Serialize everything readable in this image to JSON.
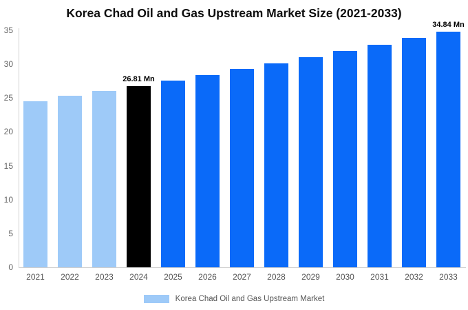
{
  "chart_data": {
    "type": "bar",
    "title": "Korea Chad Oil and Gas Upstream Market Size (2021-2033)",
    "categories": [
      "2021",
      "2022",
      "2023",
      "2024",
      "2025",
      "2026",
      "2027",
      "2028",
      "2029",
      "2030",
      "2031",
      "2032",
      "2033"
    ],
    "series": [
      {
        "name": "Korea Chad Oil and Gas Upstream Market",
        "values": [
          24.56,
          25.29,
          26.04,
          26.81,
          27.6,
          28.42,
          29.26,
          30.12,
          31.01,
          31.93,
          32.87,
          33.84,
          34.84
        ]
      }
    ],
    "bar_colors": [
      "#9ecaf8",
      "#9ecaf8",
      "#9ecaf8",
      "#000000",
      "#0a6af9",
      "#0a6af9",
      "#0a6af9",
      "#0a6af9",
      "#0a6af9",
      "#0a6af9",
      "#0a6af9",
      "#0a6af9",
      "#0a6af9"
    ],
    "annotations": [
      {
        "index": 3,
        "category": "2024",
        "label": "26.81 Mn"
      },
      {
        "index": 12,
        "category": "2033",
        "label": "34.84 Mn"
      }
    ],
    "xlabel": "",
    "ylabel": "",
    "ylim": [
      0,
      35
    ],
    "yticks": [
      0,
      5,
      10,
      15,
      20,
      25,
      30,
      35
    ],
    "grid": false,
    "legend": {
      "position": "bottom",
      "label": "Korea Chad Oil and Gas Upstream Market",
      "swatch_color": "#9ecaf8"
    },
    "colors": {
      "historical_bar": "#9ecaf8",
      "highlight_bar": "#000000",
      "forecast_bar": "#0a6af9",
      "axis_line": "#cfcfcf",
      "tick_text": "#666666",
      "category_text": "#555555",
      "annotation_text": "#000000",
      "title_text": "#0d0d0d"
    }
  }
}
